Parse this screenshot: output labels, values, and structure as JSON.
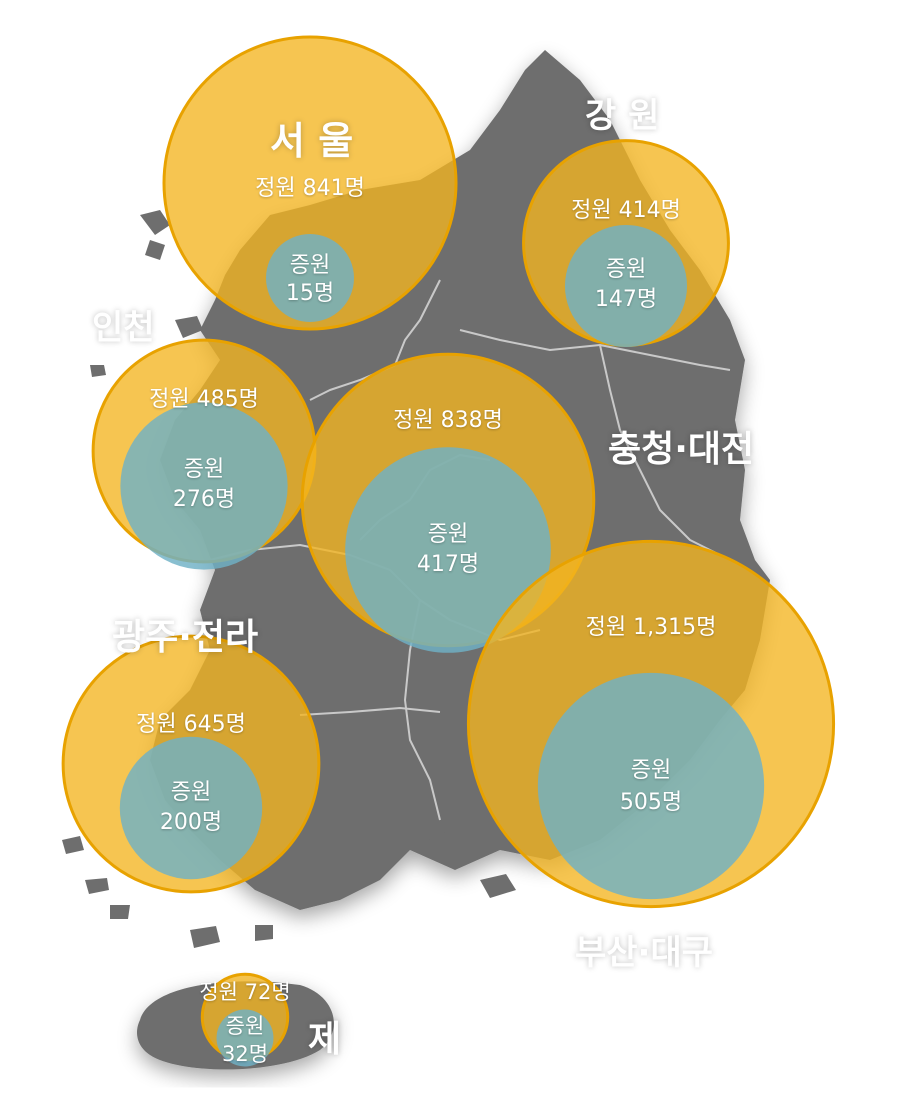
{
  "map": {
    "regions": [
      {
        "id": "seoul",
        "name": "서 울",
        "quota": "정원 841명",
        "increase_label": "증원",
        "increase_value": "15명",
        "quota_count": 841,
        "increase_count": 15
      },
      {
        "id": "gangwon",
        "name": "강 원",
        "quota": "정원 414명",
        "increase_label": "증원",
        "increase_value": "147명",
        "quota_count": 414,
        "increase_count": 147
      },
      {
        "id": "incheon",
        "name": "인천",
        "quota": "정원 485명",
        "increase_label": "증원",
        "increase_value": "276명",
        "quota_count": 485,
        "increase_count": 276
      },
      {
        "id": "chungcheong",
        "name": "충청·대전",
        "quota": "정원 838명",
        "increase_label": "증원",
        "increase_value": "417명",
        "quota_count": 838,
        "increase_count": 417
      },
      {
        "id": "jeolla",
        "name": "광주·전라",
        "quota": "정원 645명",
        "increase_label": "증원",
        "increase_value": "200명",
        "quota_count": 645,
        "increase_count": 200
      },
      {
        "id": "busan",
        "name": "부산·대구",
        "quota": "정원 1,315명",
        "increase_label": "증원",
        "increase_value": "505명",
        "quota_count": 1315,
        "increase_count": 505
      },
      {
        "id": "jeju",
        "name": "제",
        "quota": "정원 72명",
        "increase_label": "증원",
        "increase_value": "32명",
        "quota_count": 72,
        "increase_count": 32
      }
    ],
    "colors": {
      "land": "#6e6e6e",
      "border": "#c9c9c9",
      "quota_circle": "#f4b520",
      "quota_stroke": "#e8a200",
      "increase_circle": "#6fb1c6",
      "label": "#ffffff"
    }
  }
}
